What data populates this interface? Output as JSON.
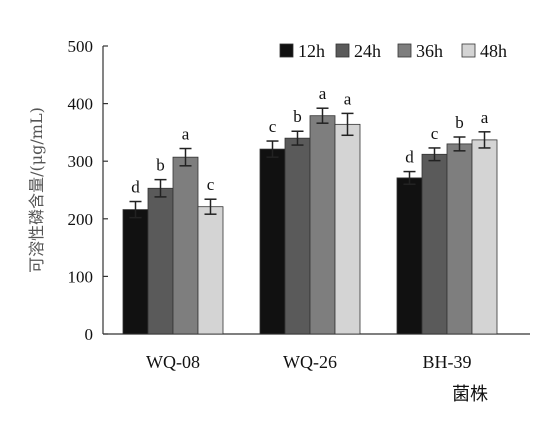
{
  "chart_data": {
    "type": "bar",
    "title": "",
    "xlabel": "菌株",
    "ylabel": "可溶性磷含量/(μg/mL)",
    "ylim": [
      0,
      500
    ],
    "yticks": [
      "0",
      "100",
      "200",
      "300",
      "400",
      "500"
    ],
    "grid": false,
    "legend_position": "top-right",
    "categories": [
      "WQ-08",
      "WQ-26",
      "BH-39"
    ],
    "series": [
      {
        "name": "12h",
        "color": "#111111",
        "values": [
          216,
          321,
          271
        ],
        "errors": [
          14,
          14,
          11
        ],
        "labels": [
          "d",
          "c",
          "d"
        ]
      },
      {
        "name": "24h",
        "color": "#5a5a5a",
        "values": [
          253,
          340,
          312
        ],
        "errors": [
          15,
          12,
          11
        ],
        "labels": [
          "b",
          "b",
          "c"
        ]
      },
      {
        "name": "36h",
        "color": "#7e7e7e",
        "values": [
          307,
          379,
          330
        ],
        "errors": [
          15,
          13,
          12
        ],
        "labels": [
          "a",
          "a",
          "b"
        ]
      },
      {
        "name": "48h",
        "color": "#d4d4d4",
        "values": [
          221,
          364,
          337
        ],
        "errors": [
          13,
          19,
          14
        ],
        "labels": [
          "c",
          "a",
          "a"
        ]
      }
    ]
  }
}
